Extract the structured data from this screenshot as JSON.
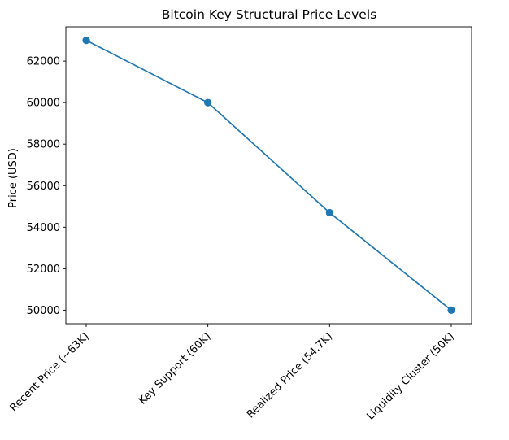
{
  "chart_data": {
    "type": "line",
    "title": "Bitcoin Key Structural Price Levels",
    "xlabel": "",
    "ylabel": "Price (USD)",
    "categories": [
      "Recent Price (~63K)",
      "Key Support (60K)",
      "Realized Price (54.7K)",
      "Liquidity Cluster (50K)"
    ],
    "values": [
      63000,
      60000,
      54700,
      50000
    ],
    "ylim": [
      49350,
      63650
    ],
    "yticks": [
      "50000",
      "52000",
      "54000",
      "56000",
      "58000",
      "60000",
      "62000"
    ],
    "grid": false,
    "line_color": "#1f77b4",
    "marker": "circle"
  }
}
